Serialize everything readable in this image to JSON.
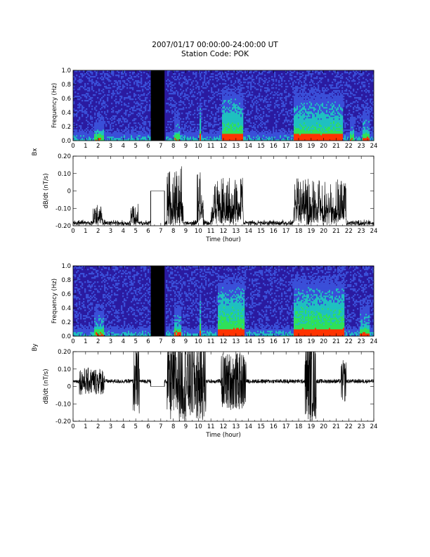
{
  "header": {
    "title": "2007/01/17 00:00:00-24:00:00 UT",
    "station": "Station Code: POK"
  },
  "colors": {
    "spec_background": "#2a1aa0",
    "spec_low": "#3a4fd8",
    "spec_mid": "#1fc0c0",
    "spec_high": "#2fe05a",
    "spec_peak": "#ff3300",
    "data_gap": "#000000",
    "trace": "#000000"
  },
  "chart_data": [
    {
      "type": "heatmap",
      "component_label": "Bx",
      "ylabel": "Frequency (Hz)",
      "xlim": [
        0,
        24
      ],
      "ylim": [
        0,
        1.0
      ],
      "x_ticks": [
        "0",
        "1",
        "2",
        "3",
        "4",
        "5",
        "6",
        "7",
        "8",
        "9",
        "10",
        "11",
        "12",
        "13",
        "14",
        "15",
        "16",
        "17",
        "18",
        "19",
        "20",
        "21",
        "22",
        "23",
        "24"
      ],
      "y_ticks": [
        "0.0",
        "0.2",
        "0.4",
        "0.6",
        "0.8",
        "1.0"
      ],
      "data_gaps_hours": [
        [
          6.2,
          7.3
        ]
      ],
      "activity_hours": [
        [
          1.6,
          2.4,
          0.45
        ],
        [
          8.0,
          8.5,
          0.5
        ],
        [
          10.0,
          10.2,
          0.8
        ],
        [
          11.8,
          13.5,
          0.9
        ],
        [
          17.5,
          21.5,
          0.85
        ],
        [
          22.0,
          22.4,
          0.5
        ],
        [
          23.0,
          23.6,
          0.6
        ]
      ]
    },
    {
      "type": "line",
      "ylabel": "dB/dt (nT/s)",
      "xlabel": "Time (hour)",
      "xlim": [
        0,
        24
      ],
      "ylim": [
        -0.2,
        0.2
      ],
      "x_ticks": [
        "0",
        "1",
        "2",
        "3",
        "4",
        "5",
        "6",
        "7",
        "8",
        "9",
        "10",
        "11",
        "12",
        "13",
        "14",
        "15",
        "16",
        "17",
        "18",
        "19",
        "20",
        "21",
        "22",
        "23",
        "24"
      ],
      "y_ticks": [
        "-0.20",
        "-0.10",
        "0",
        "0.10",
        "0.20"
      ],
      "baseline": -0.2,
      "gap_value": 0,
      "data_gaps_hours": [
        [
          6.2,
          7.3
        ]
      ],
      "activity_hours": [
        [
          1.6,
          2.4,
          0.3
        ],
        [
          4.6,
          5.2,
          0.3
        ],
        [
          7.5,
          8.8,
          1.0
        ],
        [
          9.9,
          10.4,
          0.9
        ],
        [
          11.0,
          13.6,
          0.8
        ],
        [
          17.6,
          21.8,
          0.8
        ]
      ]
    },
    {
      "type": "heatmap",
      "component_label": "By",
      "ylabel": "Frequency (Hz)",
      "xlim": [
        0,
        24
      ],
      "ylim": [
        0,
        1.0
      ],
      "x_ticks": [
        "0",
        "1",
        "2",
        "3",
        "4",
        "5",
        "6",
        "7",
        "8",
        "9",
        "10",
        "11",
        "12",
        "13",
        "14",
        "15",
        "16",
        "17",
        "18",
        "19",
        "20",
        "21",
        "22",
        "23",
        "24"
      ],
      "y_ticks": [
        "0.0",
        "0.2",
        "0.4",
        "0.6",
        "0.8",
        "1.0"
      ],
      "data_gaps_hours": [
        [
          6.2,
          7.3
        ]
      ],
      "activity_hours": [
        [
          1.6,
          2.4,
          0.55
        ],
        [
          8.0,
          8.6,
          0.6
        ],
        [
          10.0,
          10.2,
          0.8
        ],
        [
          11.5,
          13.6,
          1.0
        ],
        [
          17.5,
          21.6,
          1.0
        ],
        [
          22.8,
          23.6,
          0.6
        ]
      ]
    },
    {
      "type": "line",
      "ylabel": "dB/dt (nT/s)",
      "xlabel": "Time (hour)",
      "xlim": [
        0,
        24
      ],
      "ylim": [
        -0.2,
        0.2
      ],
      "x_ticks": [
        "0",
        "1",
        "2",
        "3",
        "4",
        "5",
        "6",
        "7",
        "8",
        "9",
        "10",
        "11",
        "12",
        "13",
        "14",
        "15",
        "16",
        "17",
        "18",
        "19",
        "20",
        "21",
        "22",
        "23",
        "24"
      ],
      "y_ticks": [
        "-0.20",
        "-0.10",
        "0",
        "0.10",
        "0.20"
      ],
      "baseline": 0.03,
      "gap_value": 0,
      "data_gaps_hours": [
        [
          6.2,
          7.3
        ]
      ],
      "activity_hours": [
        [
          0.5,
          2.5,
          0.3
        ],
        [
          4.8,
          5.3,
          0.8
        ],
        [
          7.5,
          10.6,
          1.0
        ],
        [
          11.8,
          13.8,
          0.7
        ],
        [
          18.5,
          19.4,
          1.0
        ],
        [
          21.4,
          21.8,
          0.5
        ]
      ]
    }
  ]
}
